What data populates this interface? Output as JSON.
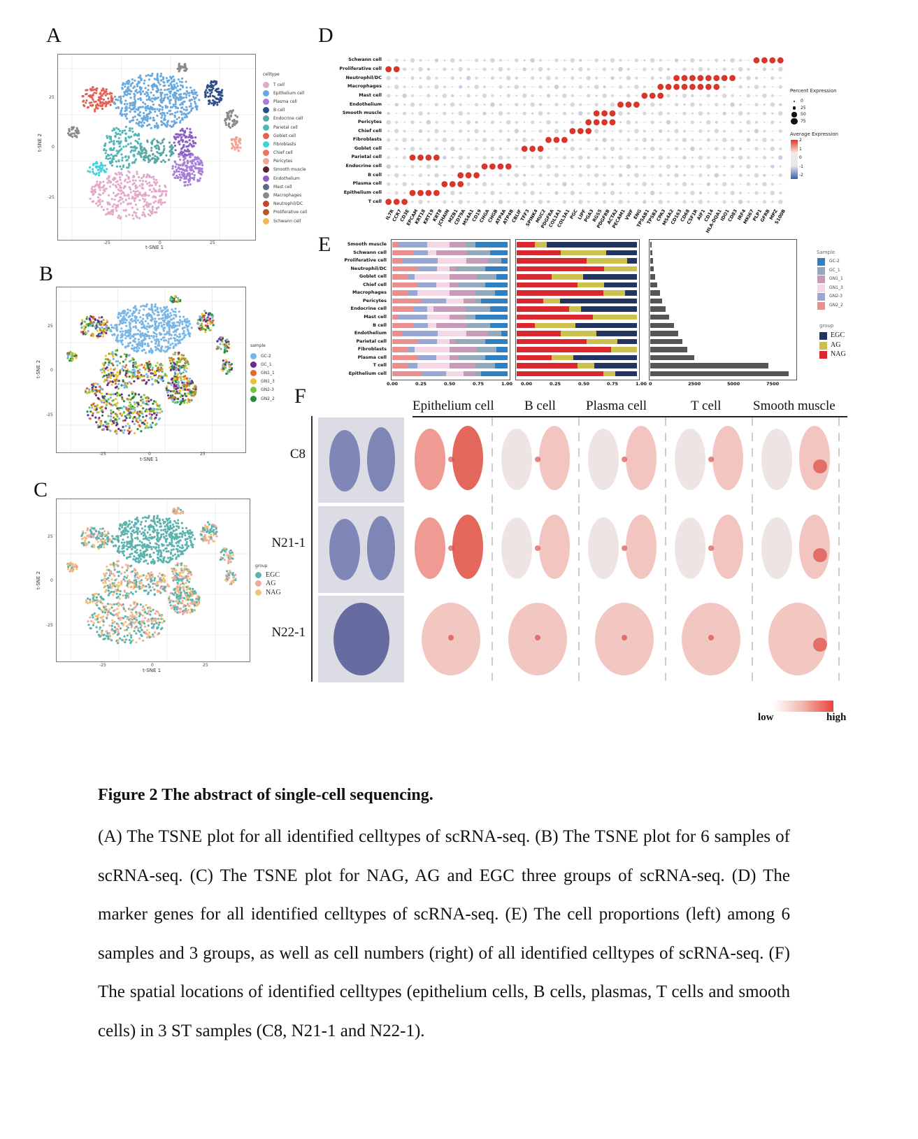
{
  "panels": {
    "A": "A",
    "B": "B",
    "C": "C",
    "D": "D",
    "E": "E",
    "F": "F"
  },
  "tsne": {
    "xlabel": "t-SNE 1",
    "ylabel": "t-SNE 2",
    "xticks": [
      "-25",
      "0",
      "25"
    ],
    "yticks": [
      "25",
      "0",
      "-25"
    ]
  },
  "legendA": {
    "title": "celltype",
    "items": [
      {
        "label": "T cell",
        "color": "#e2a9c8"
      },
      {
        "label": "Epithelium cell",
        "color": "#6aa9dd"
      },
      {
        "label": "Plasma cell",
        "color": "#a77fd6"
      },
      {
        "label": "B cell",
        "color": "#2b4f8a"
      },
      {
        "label": "Endocrine cell",
        "color": "#5aa7a3"
      },
      {
        "label": "Parietal cell",
        "color": "#53b6b6"
      },
      {
        "label": "Goblet cell",
        "color": "#e36255"
      },
      {
        "label": "Fibroblasts",
        "color": "#3ed2da"
      },
      {
        "label": "Chief cell",
        "color": "#e8765f"
      },
      {
        "label": "Pericytes",
        "color": "#f0a590"
      },
      {
        "label": "Smooth muscle",
        "color": "#5b2130"
      },
      {
        "label": "Endothelium",
        "color": "#8c5ec8"
      },
      {
        "label": "Mast cell",
        "color": "#5a6b85"
      },
      {
        "label": "Macrophages",
        "color": "#8a8a8a"
      },
      {
        "label": "Neutrophil/DC",
        "color": "#c2452c"
      },
      {
        "label": "Proliferative cell",
        "color": "#b5582c"
      },
      {
        "label": "Schwann cell",
        "color": "#f0b85b"
      }
    ]
  },
  "legendB": {
    "title": "sample",
    "items": [
      {
        "label": "GC-2",
        "color": "#78b6e6"
      },
      {
        "label": "GC_1",
        "color": "#6a2c8e"
      },
      {
        "label": "GN1_1",
        "color": "#e06a2b"
      },
      {
        "label": "GN1_3",
        "color": "#e8c530"
      },
      {
        "label": "GN2-3",
        "color": "#7cc242"
      },
      {
        "label": "GN2_2",
        "color": "#2a8a45"
      }
    ]
  },
  "legendC": {
    "title": "group",
    "items": [
      {
        "label": "EGC",
        "color": "#5bb3b0"
      },
      {
        "label": "AG",
        "color": "#f0a8a0"
      },
      {
        "label": "NAG",
        "color": "#f3c27a"
      }
    ]
  },
  "dotplot": {
    "celltypes": [
      "Schwann cell",
      "Proliferative cell",
      "Neutrophil/DC",
      "Macrophages",
      "Mast cell",
      "Endothelium",
      "Smooth muscle",
      "Pericytes",
      "Chief cell",
      "Fibroblasts",
      "Goblet cell",
      "Parietal cell",
      "Endocrine cell",
      "B cell",
      "Plasma cell",
      "Epithelium cell",
      "T cell"
    ],
    "genes": [
      "IL7R",
      "CCR7",
      "CD3E",
      "EPCAM",
      "KRT18",
      "KRT19",
      "KRT8",
      "JCHAIN",
      "MZB1",
      "CD79A",
      "MS4A1",
      "CD19",
      "CHGA",
      "CHGB",
      "ATP4A",
      "ATP4B",
      "CBLIF",
      "TFF3",
      "SPINK4",
      "MUC2",
      "PDGFRA",
      "COL1A1",
      "COL3A1",
      "PGC",
      "LIPF",
      "PGA3",
      "RGS5",
      "PDGFRB",
      "ACTA2",
      "PECAM1",
      "VWF",
      "ENG",
      "TPSAB1",
      "TPSB2",
      "CPA3",
      "MS4A2",
      "CD163",
      "CD68",
      "CSF1R",
      "AIF1",
      "CD14",
      "HLA-DQA1",
      "IDO1",
      "CD83",
      "IRF4",
      "MKI67",
      "PLP1",
      "GFRB",
      "MPZ",
      "S100B"
    ],
    "size_legend_title": "Percent Expression",
    "size_legend": [
      "0",
      "25",
      "50",
      "75"
    ],
    "color_legend_title": "Average Expression",
    "color_legend": [
      "2",
      "1",
      "0",
      "-1",
      "-2"
    ]
  },
  "proportions": {
    "celltypes": [
      "Smooth muscle",
      "Schwann cell",
      "Proliferative cell",
      "Neutrophil/DC",
      "Goblet cell",
      "Chief cell",
      "Macrophages",
      "Pericytes",
      "Endocrine cell",
      "Mast cell",
      "B cell",
      "Endothelium",
      "Parietal cell",
      "Fibroblasts",
      "Plasma cell",
      "T cell",
      "Epithelium cell"
    ],
    "axis_frac": [
      "0.00",
      "0.25",
      "0.50",
      "0.75",
      "1.00"
    ],
    "axis_frac2": [
      "0.00",
      "0.25",
      "0.50",
      "0.75",
      "1.00"
    ],
    "axis_count": [
      "0",
      "2500",
      "5000",
      "7500"
    ],
    "sample_legend_title": "Sample",
    "sample_legend": [
      {
        "label": "GC-2",
        "color": "#2f7fc1"
      },
      {
        "label": "GC_1",
        "color": "#95a9bd"
      },
      {
        "label": "GN1_1",
        "color": "#c79ab8"
      },
      {
        "label": "GN1_3",
        "color": "#f3d7e6"
      },
      {
        "label": "GN2-3",
        "color": "#98a7d3"
      },
      {
        "label": "GN2_2",
        "color": "#ea8f8f"
      }
    ],
    "group_legend_title": "group",
    "group_legend": [
      {
        "label": "EGC",
        "color": "#23345f"
      },
      {
        "label": "AG",
        "color": "#cbc14f"
      },
      {
        "label": "NAG",
        "color": "#d9282e"
      }
    ],
    "counts": [
      80,
      120,
      160,
      220,
      300,
      420,
      560,
      700,
      900,
      1100,
      1400,
      1650,
      1900,
      2200,
      2600,
      7000,
      8200
    ]
  },
  "spatial": {
    "columns": [
      "Epithelium cell",
      "B cell",
      "Plasma cell",
      "T cell",
      "Smooth muscle"
    ],
    "samples": [
      "C8",
      "N21-1",
      "N22-1"
    ],
    "scale_low": "low",
    "scale_high": "high"
  },
  "caption": {
    "title": "Figure 2    The abstract of single-cell sequencing.",
    "body": "(A) The TSNE plot for all identified celltypes of scRNA-seq. (B) The TSNE plot for 6 samples of scRNA-seq. (C) The TSNE plot for NAG, AG and EGC three groups of scRNA-seq. (D) The marker genes for all identified celltypes of scRNA-seq. (E) The cell proportions (left) among 6 samples and 3 groups, as well as cell numbers (right) of all identified celltypes of scRNA-seq. (F) The spatial locations of identified celltypes (epithelium cells, B cells, plasmas, T cells and smooth cells) in 3 ST samples (C8, N21-1 and N22-1)."
  }
}
